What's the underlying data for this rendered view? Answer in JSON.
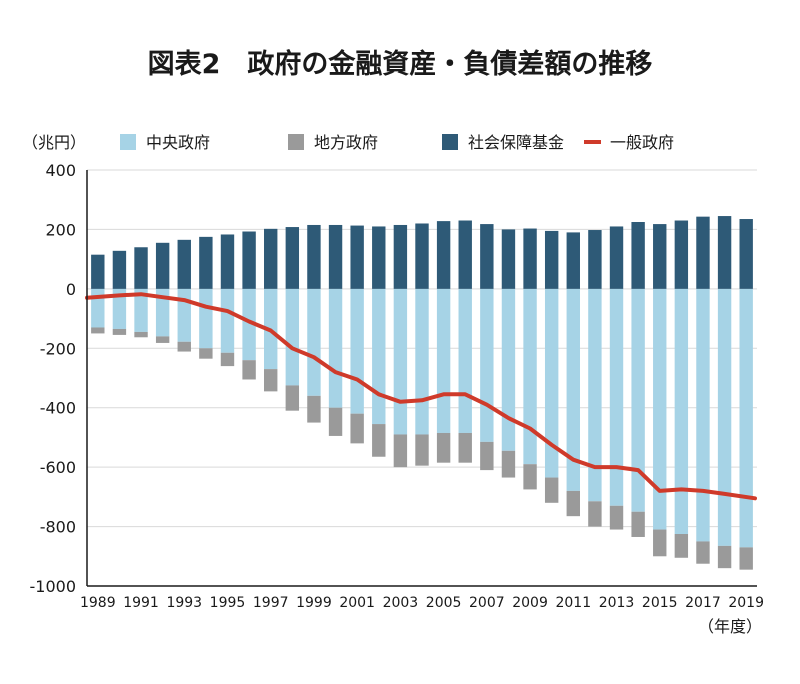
{
  "chart_data": {
    "type": "bar",
    "title": "図表2　政府の金融資産・負債差額の推移",
    "ylabel": "（兆円）",
    "xlabel": "（年度）",
    "ylim": [
      -1000,
      400
    ],
    "yticks": [
      400,
      200,
      0,
      -200,
      -400,
      -600,
      -800,
      -1000
    ],
    "xtick_labels": [
      "1989",
      "1991",
      "1993",
      "1995",
      "1997",
      "1999",
      "2001",
      "2003",
      "2005",
      "2007",
      "2009",
      "2011",
      "2013",
      "2015",
      "2017",
      "2019"
    ],
    "categories": [
      1989,
      1990,
      1991,
      1992,
      1993,
      1994,
      1995,
      1996,
      1997,
      1998,
      1999,
      2000,
      2001,
      2002,
      2003,
      2004,
      2005,
      2006,
      2007,
      2008,
      2009,
      2010,
      2011,
      2012,
      2013,
      2014,
      2015,
      2016,
      2017,
      2018,
      2019
    ],
    "series": [
      {
        "name": "中央政府",
        "color": "#a6d3e6",
        "kind": "bar-negative",
        "values": [
          -130,
          -135,
          -145,
          -160,
          -178,
          -200,
          -215,
          -240,
          -270,
          -325,
          -360,
          -400,
          -420,
          -455,
          -490,
          -490,
          -485,
          -485,
          -515,
          -545,
          -590,
          -635,
          -680,
          -715,
          -730,
          -750,
          -810,
          -825,
          -850,
          -865,
          -870
        ]
      },
      {
        "name": "地方政府",
        "color": "#9a9a9a",
        "kind": "bar-negative-stacked",
        "values": [
          -20,
          -20,
          -18,
          -22,
          -33,
          -35,
          -45,
          -65,
          -75,
          -85,
          -90,
          -95,
          -100,
          -110,
          -110,
          -105,
          -100,
          -100,
          -95,
          -90,
          -85,
          -85,
          -85,
          -85,
          -80,
          -85,
          -90,
          -80,
          -75,
          -75,
          -75
        ]
      },
      {
        "name": "社会保障基金",
        "color": "#2e5a77",
        "kind": "bar-positive",
        "values": [
          115,
          128,
          140,
          155,
          165,
          175,
          183,
          193,
          202,
          208,
          215,
          215,
          213,
          210,
          215,
          220,
          228,
          230,
          218,
          200,
          203,
          195,
          190,
          198,
          210,
          225,
          218,
          230,
          243,
          245,
          235
        ]
      },
      {
        "name": "一般政府",
        "color": "#cf3a2a",
        "kind": "line",
        "values": [
          -30,
          -22,
          -18,
          -28,
          -38,
          -60,
          -75,
          -110,
          -140,
          -200,
          -230,
          -280,
          -305,
          -355,
          -380,
          -375,
          -355,
          -355,
          -390,
          -435,
          -470,
          -525,
          -575,
          -600,
          -600,
          -610,
          -680,
          -675,
          -680,
          -690,
          -705
        ]
      }
    ]
  }
}
